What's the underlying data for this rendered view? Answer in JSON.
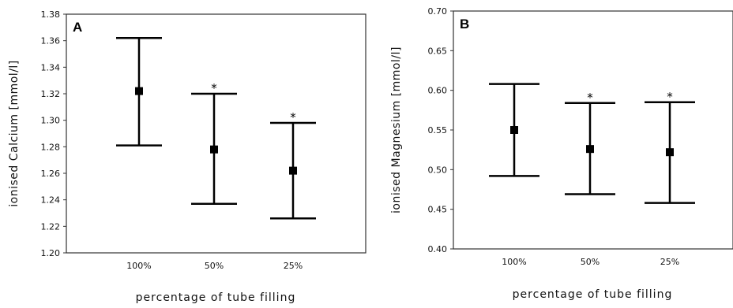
{
  "chart_data": [
    {
      "type": "errorbar",
      "panel_label": "A",
      "xlabel": "percentage of tube filling",
      "ylabel": "ionised Calcium [mmol/l]",
      "ylim": [
        1.2,
        1.38
      ],
      "yticks": [
        1.2,
        1.22,
        1.24,
        1.26,
        1.28,
        1.3,
        1.32,
        1.34,
        1.36,
        1.38
      ],
      "ytick_labels": [
        "1.20",
        "1.22",
        "1.24",
        "1.26",
        "1.28",
        "1.30",
        "1.32",
        "1.34",
        "1.36",
        "1.38"
      ],
      "categories": [
        "100%",
        "50%",
        "25%"
      ],
      "values": [
        1.322,
        1.278,
        1.262
      ],
      "lower": [
        1.281,
        1.237,
        1.226
      ],
      "upper": [
        1.362,
        1.32,
        1.298
      ],
      "significance": [
        "",
        "*",
        "*"
      ],
      "grid": false
    },
    {
      "type": "errorbar",
      "panel_label": "B",
      "xlabel": "percentage of tube filling",
      "ylabel": "ionised Magnesium [mmol/l]",
      "ylim": [
        0.4,
        0.7
      ],
      "yticks": [
        0.4,
        0.45,
        0.5,
        0.55,
        0.6,
        0.65,
        0.7
      ],
      "ytick_labels": [
        "0.40",
        "0.45",
        "0.50",
        "0.55",
        "0.60",
        "0.65",
        "0.70"
      ],
      "categories": [
        "100%",
        "50%",
        "25%"
      ],
      "values": [
        0.55,
        0.526,
        0.522
      ],
      "lower": [
        0.492,
        0.469,
        0.458
      ],
      "upper": [
        0.608,
        0.584,
        0.585
      ],
      "significance": [
        "",
        "*",
        "*"
      ],
      "grid": false
    }
  ]
}
